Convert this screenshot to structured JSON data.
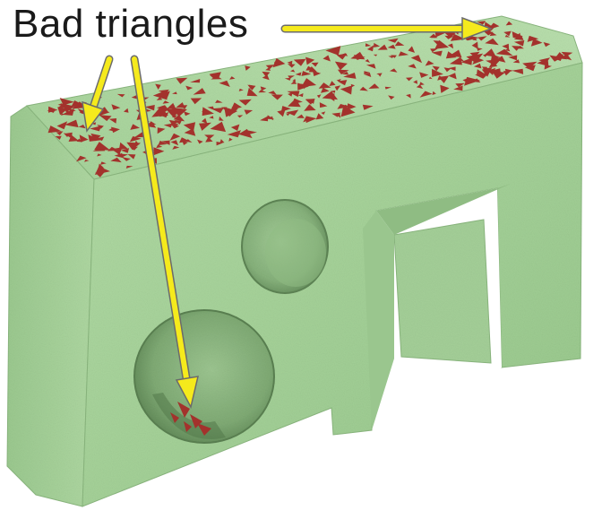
{
  "annotation": {
    "label": "Bad triangles"
  },
  "colors": {
    "mesh_green": "#a9d49c",
    "mesh_green_shade": "#8bbf80",
    "mesh_green_dark": "#6f9d64",
    "bad_triangle_red": "#a3322c",
    "arrow_yellow": "#f5ea1c",
    "arrow_outline": "#6b6b6b"
  },
  "icons": {
    "arrow": "yellow-arrow-icon"
  }
}
